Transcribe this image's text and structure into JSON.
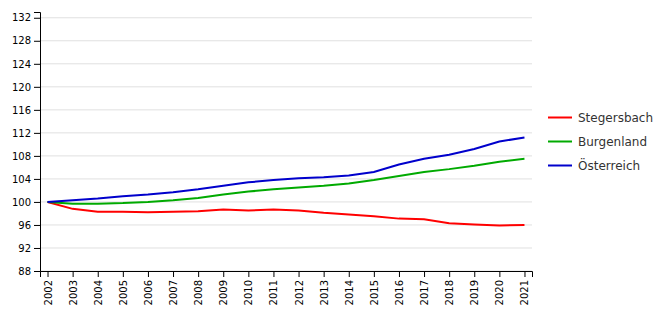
{
  "chart_data": {
    "type": "line",
    "x": [
      2002,
      2003,
      2004,
      2005,
      2006,
      2007,
      2008,
      2009,
      2010,
      2011,
      2012,
      2013,
      2014,
      2015,
      2016,
      2017,
      2018,
      2019,
      2020,
      2021
    ],
    "xlim": [
      2001.7,
      2021.3
    ],
    "xticks": [
      2002,
      2003,
      2004,
      2005,
      2006,
      2007,
      2008,
      2009,
      2010,
      2011,
      2012,
      2013,
      2014,
      2015,
      2016,
      2017,
      2018,
      2019,
      2020,
      2021
    ],
    "ylim": [
      88,
      133
    ],
    "yticks": [
      88,
      92,
      96,
      100,
      104,
      108,
      112,
      116,
      120,
      124,
      128,
      132
    ],
    "grid": true,
    "legend": "right",
    "series": [
      {
        "name": "Stegersbach",
        "color": "#FF0000",
        "values": [
          100.0,
          98.8,
          98.3,
          98.3,
          98.2,
          98.3,
          98.4,
          98.7,
          98.5,
          98.7,
          98.5,
          98.1,
          97.8,
          97.5,
          97.1,
          97.0,
          96.3,
          96.1,
          95.9,
          96.0
        ]
      },
      {
        "name": "Burgenland",
        "color": "#00AA00",
        "values": [
          100.0,
          99.7,
          99.7,
          99.8,
          100.0,
          100.3,
          100.7,
          101.3,
          101.8,
          102.2,
          102.5,
          102.8,
          103.2,
          103.8,
          104.5,
          105.2,
          105.7,
          106.3,
          107.0,
          107.5
        ]
      },
      {
        "name": "Österreich",
        "color": "#0000CC",
        "values": [
          100.0,
          100.3,
          100.6,
          101.0,
          101.3,
          101.7,
          102.2,
          102.8,
          103.4,
          103.8,
          104.1,
          104.3,
          104.6,
          105.2,
          106.5,
          107.5,
          108.2,
          109.2,
          110.5,
          111.2
        ]
      }
    ]
  }
}
